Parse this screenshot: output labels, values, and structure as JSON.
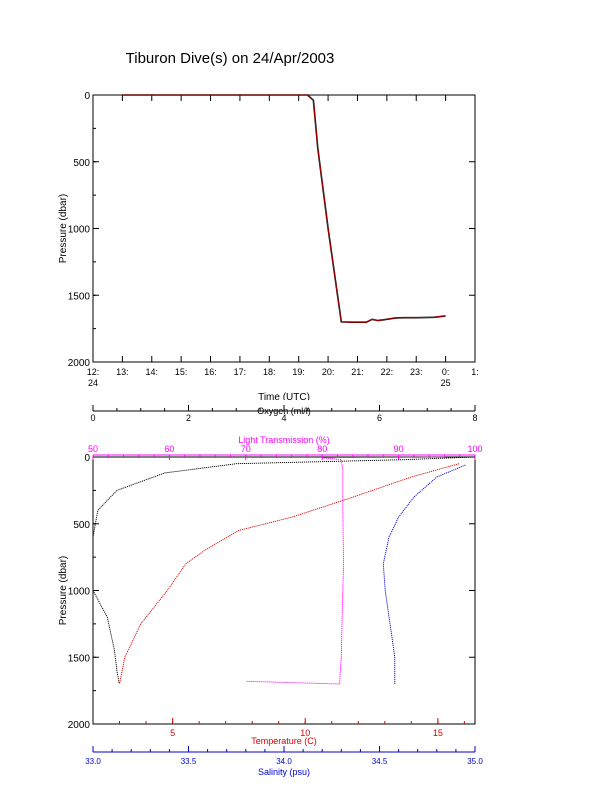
{
  "title": "Tiburon Dive(s) on 24/Apr/2003",
  "colors": {
    "frame": "#000000",
    "track": "#cc0000",
    "oxygen": "#000000",
    "transmission": "#ff00ff",
    "temperature": "#dd0000",
    "salinity": "#0000cc"
  },
  "chart_data": [
    {
      "type": "line",
      "ylabel": "Pressure (dbar)",
      "xlabel": "Time (UTC)",
      "ylim": [
        2000,
        0
      ],
      "yticks": [
        "0",
        "500",
        "1000",
        "1500",
        "2000"
      ],
      "xticks": [
        {
          "label": "12:",
          "sub": "24"
        },
        {
          "label": "13:",
          "sub": ""
        },
        {
          "label": "14:",
          "sub": ""
        },
        {
          "label": "15:",
          "sub": ""
        },
        {
          "label": "16:",
          "sub": ""
        },
        {
          "label": "17:",
          "sub": ""
        },
        {
          "label": "18:",
          "sub": ""
        },
        {
          "label": "19:",
          "sub": ""
        },
        {
          "label": "20:",
          "sub": ""
        },
        {
          "label": "21:",
          "sub": ""
        },
        {
          "label": "22:",
          "sub": ""
        },
        {
          "label": "23:",
          "sub": ""
        },
        {
          "label": "0:",
          "sub": "25"
        },
        {
          "label": "1:",
          "sub": ""
        }
      ],
      "xlim_hours": [
        12,
        25
      ],
      "series": [
        {
          "x_hours": [
            13.0,
            15.0,
            17.0,
            19.0,
            19.3,
            19.5,
            19.65,
            20.0,
            20.45,
            20.8,
            21.3,
            21.5,
            21.7,
            22.3,
            22.6,
            23.0,
            23.6,
            24.0
          ],
          "y": [
            0,
            0,
            0,
            0,
            0,
            40,
            400,
            1000,
            1700,
            1702,
            1702,
            1680,
            1690,
            1670,
            1668,
            1668,
            1665,
            1655
          ]
        }
      ]
    },
    {
      "type": "line",
      "ylabel": "Pressure (dbar)",
      "ylim": [
        2000,
        0
      ],
      "yticks": [
        "0",
        "500",
        "1000",
        "1500",
        "2000"
      ],
      "axes": {
        "oxygen": {
          "label": "Oxygen (ml/l)",
          "range": [
            0,
            8
          ],
          "ticks": [
            "0",
            "2",
            "4",
            "6",
            "8"
          ]
        },
        "transmission": {
          "label": "Light Transmission (%)",
          "range": [
            50,
            100
          ],
          "ticks": [
            "50",
            "60",
            "70",
            "80",
            "90",
            "100"
          ]
        },
        "temperature": {
          "label": "Temperature (C)",
          "range": [
            2,
            16.4
          ],
          "ticks": [
            "5",
            "10",
            "15"
          ],
          "tick_values": [
            5,
            10,
            15
          ]
        },
        "salinity": {
          "label": "Salinity (psu)",
          "range": [
            33.0,
            35.0
          ],
          "ticks": [
            "33.0",
            "33.5",
            "34.0",
            "34.5",
            "35.0"
          ]
        }
      },
      "series": [
        {
          "name": "Oxygen",
          "axis": "oxygen",
          "values": [
            [
              8.0,
              0
            ],
            [
              6.5,
              20
            ],
            [
              3.0,
              50
            ],
            [
              1.5,
              120
            ],
            [
              0.5,
              250
            ],
            [
              0.1,
              400
            ],
            [
              0.0,
              600
            ],
            [
              0.0,
              1000
            ],
            [
              0.3,
              1200
            ],
            [
              0.45,
              1450
            ],
            [
              0.5,
              1600
            ],
            [
              0.55,
              1700
            ]
          ]
        },
        {
          "name": "Light Transmission",
          "axis": "transmission",
          "values": [
            [
              96,
              0
            ],
            [
              80,
              5
            ],
            [
              82.5,
              20
            ],
            [
              82.7,
              100
            ],
            [
              82.7,
              400
            ],
            [
              82.8,
              800
            ],
            [
              82.6,
              1200
            ],
            [
              82.5,
              1500
            ],
            [
              82.3,
              1650
            ],
            [
              82.3,
              1700
            ],
            [
              70,
              1680
            ]
          ]
        },
        {
          "name": "Temperature",
          "axis": "temperature",
          "values": [
            [
              15.8,
              50
            ],
            [
              14.0,
              150
            ],
            [
              11.8,
              300
            ],
            [
              9.5,
              450
            ],
            [
              7.5,
              550
            ],
            [
              6.2,
              700
            ],
            [
              5.5,
              800
            ],
            [
              4.8,
              1000
            ],
            [
              3.8,
              1250
            ],
            [
              3.2,
              1500
            ],
            [
              3.0,
              1700
            ]
          ]
        },
        {
          "name": "Salinity",
          "axis": "salinity",
          "values": [
            [
              34.95,
              60
            ],
            [
              34.8,
              150
            ],
            [
              34.68,
              300
            ],
            [
              34.6,
              450
            ],
            [
              34.55,
              600
            ],
            [
              34.52,
              800
            ],
            [
              34.53,
              1000
            ],
            [
              34.56,
              1300
            ],
            [
              34.58,
              1500
            ],
            [
              34.58,
              1700
            ]
          ]
        }
      ]
    }
  ]
}
